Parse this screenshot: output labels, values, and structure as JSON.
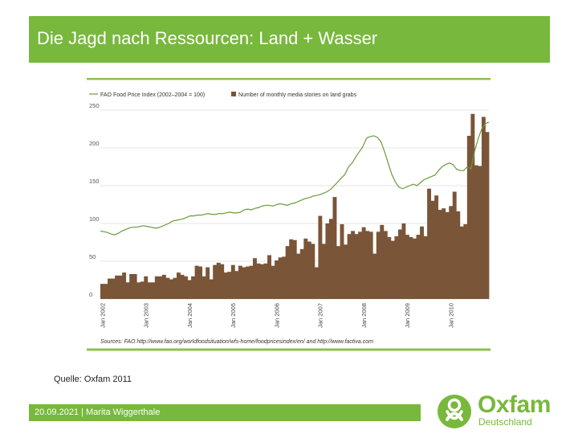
{
  "slide": {
    "title": "Die Jagd nach Ressourcen: Land + Wasser",
    "source_note": "Quelle: Oxfam 2011",
    "footer": "20.09.2021 | Marita Wiggerthale",
    "logo_text": "Oxfam",
    "logo_subtext": "Deutschland",
    "accent_color": "#78b83c"
  },
  "chart_data": {
    "type": "bar",
    "legend": {
      "line_label": "FAO Food Price Index (2002–2004 = 100)",
      "bar_label": "Number of monthly media stories on land grabs",
      "placement": "top-left"
    },
    "y_ticks": [
      "250",
      "200",
      "150",
      "100",
      "50",
      "0"
    ],
    "ylim": [
      0,
      250
    ],
    "grid": true,
    "x_ticks": [
      {
        "label": "Jan 2002",
        "index": 0
      },
      {
        "label": "Jan 2003",
        "index": 12
      },
      {
        "label": "Jan 2004",
        "index": 24
      },
      {
        "label": "Jan 2005",
        "index": 36
      },
      {
        "label": "Jan 2006",
        "index": 48
      },
      {
        "label": "Jan 2007",
        "index": 60
      },
      {
        "label": "Jan 2008",
        "index": 72
      },
      {
        "label": "Jan 2009",
        "index": 84
      },
      {
        "label": "Jan 2010",
        "index": 96
      }
    ],
    "sources": "Sources: FAO http://www.fao.org/worldfoodsituation/wfs-home/foodpricesindex/en/ and http://www.factiva.com",
    "bar_color": "#7a5538",
    "line_color": "#6a9a3c",
    "series": [
      {
        "type": "bar",
        "start": "Jan 2002",
        "values": [
          20,
          20,
          27,
          27,
          31,
          31,
          35,
          22,
          33,
          33,
          22,
          23,
          30,
          22,
          22,
          30,
          30,
          32,
          28,
          26,
          28,
          35,
          32,
          30,
          25,
          30,
          44,
          43,
          30,
          42,
          26,
          45,
          48,
          46,
          35,
          36,
          45,
          37,
          44,
          42,
          43,
          44,
          54,
          47,
          46,
          47,
          58,
          44,
          51,
          55,
          56,
          70,
          79,
          78,
          60,
          66,
          80,
          76,
          73,
          42,
          110,
          73,
          100,
          106,
          135,
          70,
          99,
          72,
          86,
          90,
          86,
          89,
          95,
          90,
          89,
          60,
          89,
          98,
          90,
          82,
          77,
          83,
          92,
          100,
          85,
          82,
          80,
          85,
          96,
          83,
          146,
          130,
          137,
          118,
          120,
          115,
          123,
          142,
          116,
          96,
          99,
          216,
          245,
          177,
          176,
          241,
          221
        ]
      },
      {
        "type": "line",
        "start": "Jan 2002",
        "values": [
          90,
          89,
          88,
          86,
          85,
          87,
          90,
          92,
          94,
          95,
          95,
          96,
          97,
          96,
          95,
          94,
          94,
          96,
          98,
          100,
          103,
          104,
          105,
          106,
          108,
          110,
          110,
          111,
          111,
          112,
          113,
          112,
          112,
          113,
          113,
          114,
          115,
          114,
          114,
          115,
          118,
          119,
          118,
          120,
          121,
          123,
          124,
          124,
          123,
          125,
          126,
          125,
          124,
          126,
          127,
          129,
          131,
          133,
          134,
          136,
          137,
          138,
          140,
          142,
          145,
          150,
          155,
          160,
          165,
          175,
          180,
          188,
          195,
          202,
          213,
          215,
          216,
          214,
          208,
          195,
          180,
          165,
          155,
          148,
          146,
          148,
          150,
          152,
          150,
          154,
          158,
          160,
          162,
          164,
          170,
          175,
          178,
          180,
          178,
          172,
          170,
          170,
          175,
          172,
          195,
          212,
          225,
          232,
          234
        ]
      }
    ]
  }
}
